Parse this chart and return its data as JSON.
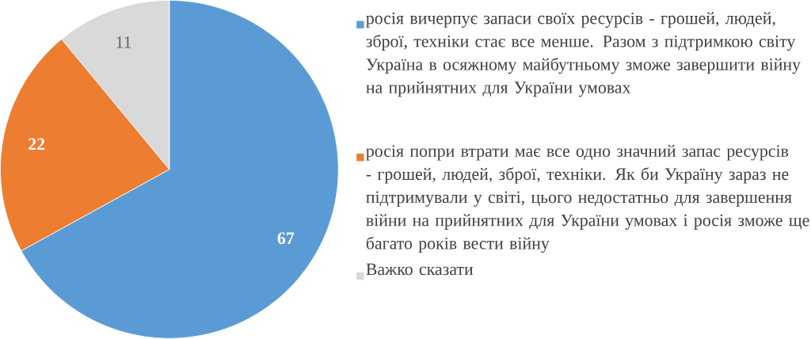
{
  "chart_data": {
    "type": "pie",
    "categories": [
      "росія вичерпує запаси своїх ресурсів - грошей, людей, зброї, техніки стає все менше. Разом з підтримкою світу Україна в осяжному майбутньому зможе завершити війну на прийнятних для України умовах",
      "росія попри втрати має все одно значний запас ресурсів - грошей, людей, зброї, техніки. Як би Україну зараз не підтримували у світі, цього недостатньо для завершення війни на прийнятних для України умовах і росія зможе ще багато років вести війну",
      "Важко сказати"
    ],
    "values": [
      67,
      22,
      11
    ],
    "colors": [
      "#5b9bd5",
      "#ed7d31",
      "#d9d9d9"
    ],
    "data_labels": true,
    "legend": "right"
  }
}
